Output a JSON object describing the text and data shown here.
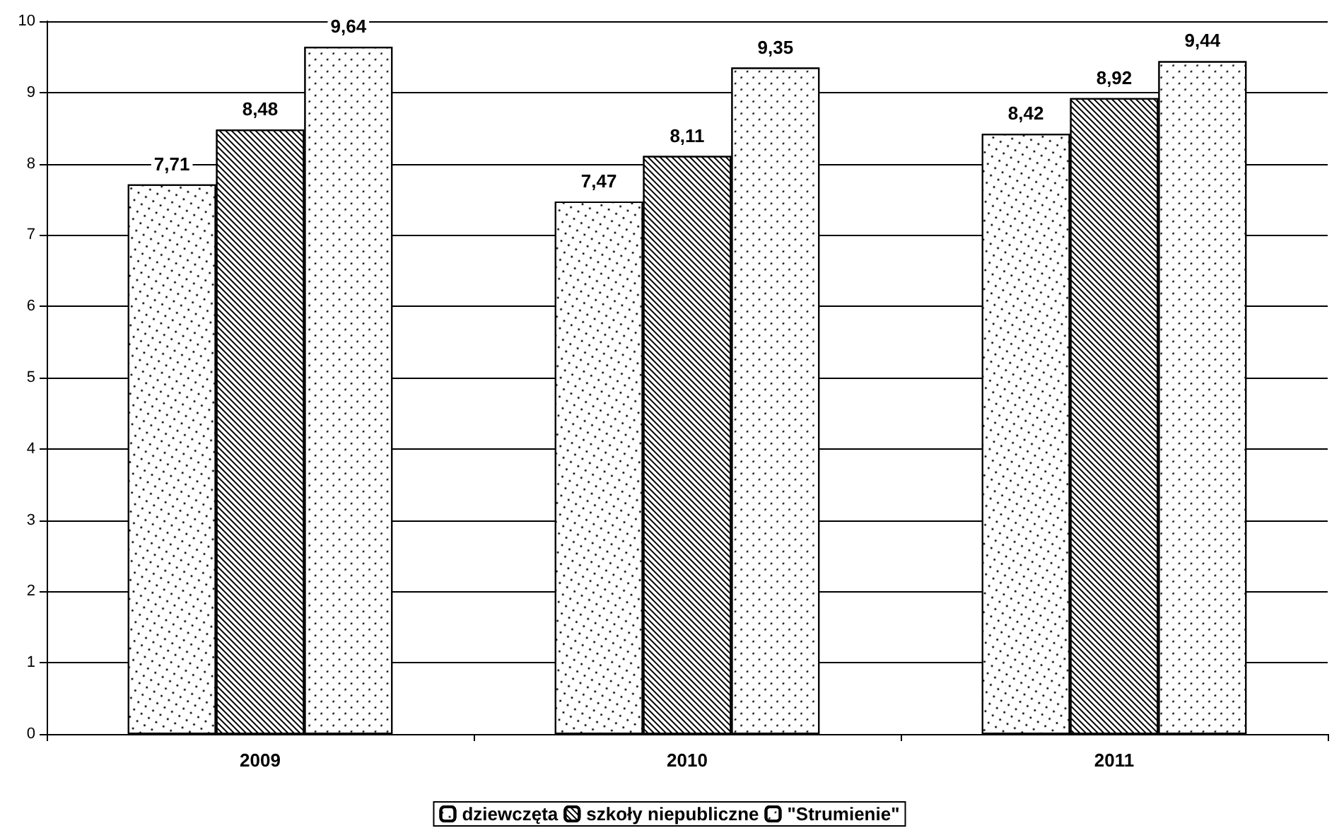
{
  "chart_data": {
    "type": "bar",
    "categories": [
      "2009",
      "2010",
      "2011"
    ],
    "series": [
      {
        "name": "dziewczęta",
        "color": "#ffffff",
        "values": [
          7.71,
          7.47,
          8.42
        ],
        "value_labels": [
          "7,71",
          "7,47",
          "8,42"
        ]
      },
      {
        "name": "szkoły niepubliczne",
        "color": "#ffffff",
        "values": [
          8.48,
          8.11,
          8.92
        ],
        "value_labels": [
          "8,48",
          "8,11",
          "8,92"
        ]
      },
      {
        "name": "\"Strumienie\"",
        "color": "#ffffff",
        "values": [
          9.64,
          9.35,
          9.44
        ],
        "value_labels": [
          "9,64",
          "9,35",
          "9,44"
        ]
      }
    ],
    "ylim": [
      0,
      10
    ],
    "yticks": [
      0,
      1,
      2,
      3,
      4,
      5,
      6,
      7,
      8,
      9,
      10
    ],
    "grid": "y",
    "legend": "bottom"
  }
}
